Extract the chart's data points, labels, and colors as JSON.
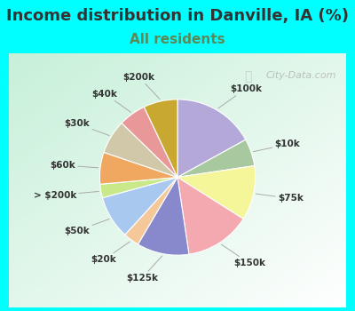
{
  "title": "Income distribution in Danville, IA (%)",
  "subtitle": "All residents",
  "background_color": "#00FFFF",
  "title_color": "#333333",
  "title_fontsize": 13,
  "subtitle_fontsize": 11,
  "subtitle_color": "#5a8a5a",
  "watermark": "City-Data.com",
  "label_fontsize": 7.5,
  "slices": [
    {
      "label": "$100k",
      "value": 18.0,
      "color": "#b3a8d8"
    },
    {
      "label": "$10k",
      "value": 6.0,
      "color": "#a8c8a0"
    },
    {
      "label": "$75k",
      "value": 12.0,
      "color": "#f5f59a"
    },
    {
      "label": "$150k",
      "value": 14.5,
      "color": "#f4a8b0"
    },
    {
      "label": "$125k",
      "value": 11.5,
      "color": "#8888cc"
    },
    {
      "label": "$20k",
      "value": 3.5,
      "color": "#f5c89a"
    },
    {
      "label": "$50k",
      "value": 9.5,
      "color": "#a8c8f0"
    },
    {
      "label": "> $200k",
      "value": 3.0,
      "color": "#c8e88a"
    },
    {
      "label": "$60k",
      "value": 7.0,
      "color": "#f0a860"
    },
    {
      "label": "$30k",
      "value": 7.5,
      "color": "#d0c8a8"
    },
    {
      "label": "$40k",
      "value": 6.0,
      "color": "#e89898"
    },
    {
      "label": "$200k",
      "value": 7.5,
      "color": "#c8a830"
    }
  ]
}
